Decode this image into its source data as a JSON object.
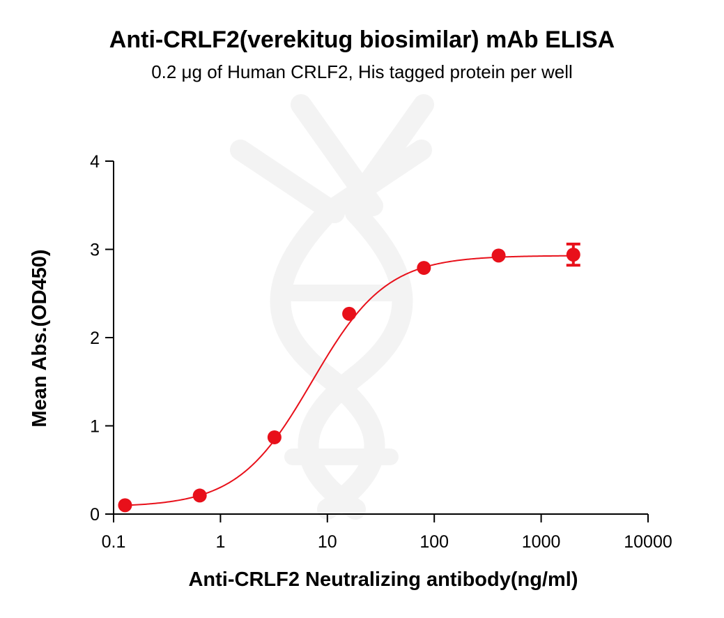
{
  "title": "Anti-CRLF2(verekitug biosimilar) mAb ELISA",
  "subtitle": "0.2 μg of Human CRLF2, His tagged protein per well",
  "chart_data": {
    "type": "scatter",
    "xlabel": "Anti-CRLF2 Neutralizing antibody(ng/ml)",
    "ylabel": "Mean Abs.(OD450)",
    "xscale": "log",
    "xlim": [
      0.1,
      10000
    ],
    "ylim": [
      0,
      4
    ],
    "xticks": [
      0.1,
      1,
      10,
      100,
      1000,
      10000
    ],
    "xtick_labels": [
      "0.1",
      "1",
      "10",
      "100",
      "1000",
      "10000"
    ],
    "yticks": [
      0,
      1,
      2,
      3,
      4
    ],
    "ytick_labels": [
      "0",
      "1",
      "2",
      "3",
      "4"
    ],
    "grid": false,
    "series": [
      {
        "x": [
          0.128,
          0.64,
          3.2,
          16,
          80,
          400,
          2000
        ],
        "y": [
          0.1,
          0.21,
          0.87,
          2.27,
          2.79,
          2.93,
          2.94
        ],
        "error": [
          0,
          0,
          0,
          0,
          0,
          0,
          0.12
        ],
        "color": "#e8101a",
        "fit": "4PL sigmoidal curve",
        "fit_params": {
          "bottom": 0.08,
          "top": 2.93,
          "ec50": 7.2,
          "hill": 1.25
        }
      }
    ]
  }
}
